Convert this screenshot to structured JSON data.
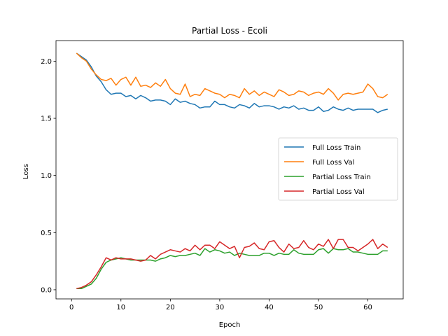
{
  "chart_data": {
    "type": "line",
    "title": "Partial Loss - Ecoli",
    "xlabel": "Epoch",
    "ylabel": "Loss",
    "xlim": [
      -3.15,
      67.15
    ],
    "ylim": [
      -0.08,
      2.18
    ],
    "xticks": [
      0,
      10,
      20,
      30,
      40,
      50,
      60
    ],
    "yticks": [
      0.0,
      0.5,
      1.0,
      1.5,
      2.0
    ],
    "xtick_labels": [
      "0",
      "10",
      "20",
      "30",
      "40",
      "50",
      "60"
    ],
    "ytick_labels": [
      "0.0",
      "0.5",
      "1.0",
      "1.5",
      "2.0"
    ],
    "grid": false,
    "legend_position": "center-right",
    "x": [
      1,
      2,
      3,
      4,
      5,
      6,
      7,
      8,
      9,
      10,
      11,
      12,
      13,
      14,
      15,
      16,
      17,
      18,
      19,
      20,
      21,
      22,
      23,
      24,
      25,
      26,
      27,
      28,
      29,
      30,
      31,
      32,
      33,
      34,
      35,
      36,
      37,
      38,
      39,
      40,
      41,
      42,
      43,
      44,
      45,
      46,
      47,
      48,
      49,
      50,
      51,
      52,
      53,
      54,
      55,
      56,
      57,
      58,
      59,
      60,
      61,
      62,
      63,
      64
    ],
    "series": [
      {
        "name": "Full Loss Train",
        "color": "#1f77b4",
        "values": [
          2.07,
          2.04,
          2.01,
          1.95,
          1.87,
          1.82,
          1.75,
          1.71,
          1.72,
          1.72,
          1.69,
          1.7,
          1.67,
          1.7,
          1.68,
          1.65,
          1.66,
          1.66,
          1.65,
          1.62,
          1.67,
          1.64,
          1.65,
          1.63,
          1.62,
          1.59,
          1.6,
          1.6,
          1.65,
          1.62,
          1.62,
          1.6,
          1.59,
          1.62,
          1.61,
          1.59,
          1.63,
          1.6,
          1.61,
          1.61,
          1.6,
          1.58,
          1.6,
          1.59,
          1.61,
          1.58,
          1.59,
          1.57,
          1.57,
          1.6,
          1.56,
          1.57,
          1.6,
          1.58,
          1.57,
          1.59,
          1.57,
          1.58,
          1.58,
          1.58,
          1.58,
          1.55,
          1.57,
          1.58
        ]
      },
      {
        "name": "Full Loss Val",
        "color": "#ff7f0e",
        "values": [
          2.07,
          2.03,
          2.0,
          1.93,
          1.88,
          1.84,
          1.83,
          1.85,
          1.79,
          1.84,
          1.86,
          1.79,
          1.86,
          1.78,
          1.79,
          1.77,
          1.81,
          1.78,
          1.84,
          1.76,
          1.72,
          1.71,
          1.8,
          1.69,
          1.71,
          1.7,
          1.76,
          1.74,
          1.72,
          1.71,
          1.68,
          1.71,
          1.7,
          1.68,
          1.76,
          1.71,
          1.74,
          1.7,
          1.73,
          1.71,
          1.69,
          1.75,
          1.73,
          1.7,
          1.71,
          1.74,
          1.73,
          1.7,
          1.72,
          1.73,
          1.71,
          1.76,
          1.72,
          1.66,
          1.71,
          1.72,
          1.71,
          1.72,
          1.73,
          1.8,
          1.76,
          1.69,
          1.68,
          1.71
        ]
      },
      {
        "name": "Partial Loss Train",
        "color": "#2ca02c",
        "values": [
          0.01,
          0.01,
          0.03,
          0.05,
          0.1,
          0.18,
          0.24,
          0.26,
          0.27,
          0.28,
          0.27,
          0.26,
          0.26,
          0.26,
          0.26,
          0.26,
          0.25,
          0.27,
          0.28,
          0.3,
          0.29,
          0.3,
          0.3,
          0.31,
          0.32,
          0.3,
          0.36,
          0.33,
          0.35,
          0.34,
          0.32,
          0.33,
          0.3,
          0.32,
          0.31,
          0.3,
          0.3,
          0.3,
          0.32,
          0.32,
          0.3,
          0.32,
          0.31,
          0.31,
          0.35,
          0.32,
          0.31,
          0.31,
          0.31,
          0.35,
          0.36,
          0.32,
          0.36,
          0.35,
          0.35,
          0.36,
          0.33,
          0.33,
          0.32,
          0.31,
          0.31,
          0.31,
          0.34,
          0.34
        ]
      },
      {
        "name": "Partial Loss Val",
        "color": "#d62728",
        "values": [
          0.01,
          0.02,
          0.04,
          0.07,
          0.13,
          0.2,
          0.28,
          0.26,
          0.28,
          0.27,
          0.27,
          0.27,
          0.26,
          0.25,
          0.26,
          0.3,
          0.27,
          0.31,
          0.33,
          0.35,
          0.34,
          0.33,
          0.36,
          0.34,
          0.39,
          0.35,
          0.39,
          0.39,
          0.36,
          0.42,
          0.39,
          0.36,
          0.38,
          0.28,
          0.37,
          0.38,
          0.41,
          0.36,
          0.35,
          0.42,
          0.43,
          0.37,
          0.33,
          0.4,
          0.36,
          0.37,
          0.43,
          0.37,
          0.35,
          0.4,
          0.38,
          0.44,
          0.36,
          0.44,
          0.44,
          0.37,
          0.37,
          0.34,
          0.37,
          0.4,
          0.44,
          0.36,
          0.4,
          0.37
        ]
      }
    ]
  }
}
